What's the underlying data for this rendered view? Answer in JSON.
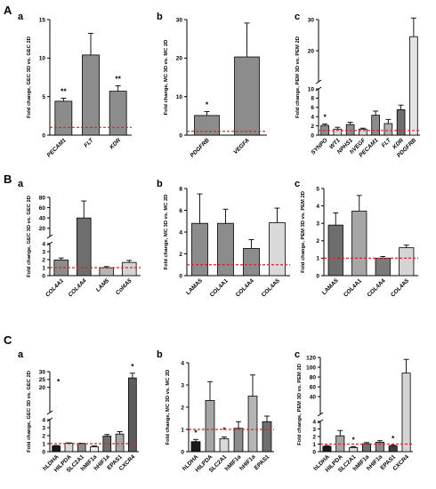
{
  "figure": {
    "row_labels": [
      "A",
      "B",
      "C"
    ]
  },
  "chart_data": [
    {
      "id": "A-a",
      "row": "A",
      "panel": "a",
      "type": "bar",
      "ylabel": "Fold change, GEC 3D vs. GEC 2D",
      "categories": [
        "PECAM1",
        "FLT",
        "KDR"
      ],
      "italic_categories": true,
      "values": [
        4.4,
        10.4,
        5.7
      ],
      "errors": [
        0.4,
        2.8,
        0.7
      ],
      "annotations": [
        "**",
        "",
        "**"
      ],
      "ylim": [
        0,
        15
      ],
      "yticks": [
        0,
        5,
        10,
        15
      ],
      "reference_line": 1,
      "bar_color": "#8c8c8c"
    },
    {
      "id": "A-b",
      "row": "A",
      "panel": "b",
      "type": "bar",
      "ylabel": "Fold change, MC 3D vs. MC 2D",
      "categories": [
        "PDGFRB",
        "VEGFA"
      ],
      "italic_categories": true,
      "values": [
        5.1,
        20.3
      ],
      "errors": [
        1.0,
        8.8
      ],
      "annotations": [
        "*",
        ""
      ],
      "ylim": [
        0,
        30
      ],
      "yticks": [
        0,
        10,
        20,
        30
      ],
      "reference_line": 1,
      "bar_color": "#8c8c8c"
    },
    {
      "id": "A-c",
      "row": "A",
      "panel": "c",
      "type": "bar",
      "ylabel": "Fold change, PEM 3D vs. PEM 2D",
      "categories": [
        "SYNPO",
        "WT1",
        "NPHS1",
        "hVEGF",
        "PECAM1",
        "FLT",
        "KDR",
        "PDGFRB"
      ],
      "italic_categories": true,
      "values": [
        2.1,
        1.3,
        2.3,
        1.3,
        4.3,
        2.5,
        5.5,
        24.5
      ],
      "errors": [
        0.3,
        0.4,
        0.5,
        0.2,
        0.9,
        0.9,
        1.0,
        6.0
      ],
      "colors": [
        "#8c8c8c",
        "#d9d9d9",
        "#8c8c8c",
        "#d9d9d9",
        "#8c8c8c",
        "#b0b0b0",
        "#6e6e6e",
        "#e3e3e3"
      ],
      "annotations": [
        "*",
        "",
        "",
        "",
        "",
        "",
        "",
        ""
      ],
      "broken_axis": true,
      "lower_ylim": [
        0,
        10
      ],
      "lower_yticks": [
        0,
        2,
        4,
        6,
        8,
        10
      ],
      "upper_ylim": [
        10,
        30
      ],
      "upper_yticks": [
        20,
        30
      ],
      "reference_line": 1
    },
    {
      "id": "B-a",
      "row": "B",
      "panel": "a",
      "type": "bar",
      "ylabel": "Fold change, GEC 3D vs. GEC 2D",
      "categories": [
        "COL4A1",
        "COL4A4",
        "LAM5",
        "Col4A5"
      ],
      "italic_categories": true,
      "values": [
        1.95,
        40,
        0.98,
        1.65
      ],
      "errors": [
        0.25,
        33,
        0.15,
        0.25
      ],
      "colors": [
        "#8c8c8c",
        "#6e6e6e",
        "#b5b5b5",
        "#d4d4d4"
      ],
      "broken_axis": true,
      "lower_ylim": [
        0,
        4
      ],
      "lower_yticks": [
        0,
        1,
        2,
        3,
        4
      ],
      "upper_ylim": [
        4,
        80
      ],
      "upper_yticks": [
        20,
        40,
        60,
        80
      ],
      "reference_line": 1
    },
    {
      "id": "B-b",
      "row": "B",
      "panel": "b",
      "type": "bar",
      "ylabel": "Fold change, MC 3D vs. MC 2D",
      "categories": [
        "LAMA5",
        "COL4A1",
        "COL4A4",
        "COL4A5"
      ],
      "values": [
        4.8,
        4.8,
        2.5,
        4.85
      ],
      "errors": [
        2.7,
        1.3,
        0.8,
        1.35
      ],
      "colors": [
        "#8c8c8c",
        "#8c8c8c",
        "#8c8c8c",
        "#d9d9d9"
      ],
      "ylim": [
        0,
        8
      ],
      "yticks": [
        0,
        2,
        4,
        6,
        8
      ],
      "reference_line": 1
    },
    {
      "id": "B-c",
      "row": "B",
      "panel": "c",
      "type": "bar",
      "ylabel": "Fold change, PEM 3D vs. PEM 2D",
      "categories": [
        "LAMA5",
        "COL4A1",
        "COL4A4",
        "COL4A5"
      ],
      "values": [
        2.9,
        3.7,
        1.0,
        1.6
      ],
      "errors": [
        0.7,
        0.9,
        0.1,
        0.15
      ],
      "colors": [
        "#6e6e6e",
        "#a6a6a6",
        "#7a7a7a",
        "#d4d4d4"
      ],
      "ylim": [
        0,
        5
      ],
      "yticks": [
        0,
        1,
        2,
        3,
        4,
        5
      ],
      "reference_line": 1
    },
    {
      "id": "C-a",
      "row": "C",
      "panel": "a",
      "type": "bar",
      "ylabel": "Fold change, GEC 3D vs. GEC 2D",
      "categories": [
        "hLDHA",
        "HILPDA",
        "SLC2A1",
        "hMIF1a",
        "hHIF1a",
        "EPAS1",
        "CXCR4"
      ],
      "values": [
        0.72,
        1.05,
        1.0,
        0.6,
        1.95,
        2.2,
        26
      ],
      "errors": [
        0.05,
        0.05,
        0.05,
        0.1,
        0.2,
        0.3,
        3.0
      ],
      "colors": [
        "#1a1a1a",
        "#d9d9d9",
        "#8c8c8c",
        "#ececec",
        "#6e6e6e",
        "#a6a6a6",
        "#5c5c5c"
      ],
      "annotations": [
        "",
        "",
        "",
        "",
        "",
        "",
        "*"
      ],
      "side_annotation": "*",
      "broken_axis": true,
      "lower_ylim": [
        0,
        4
      ],
      "lower_yticks": [
        0,
        1,
        2,
        3,
        4
      ],
      "upper_ylim": [
        4,
        30
      ],
      "upper_yticks": [
        20,
        25,
        30
      ],
      "reference_line": 1
    },
    {
      "id": "C-b",
      "row": "C",
      "panel": "b",
      "type": "bar",
      "ylabel": "Fold change, MC 3D vs. MC 2D",
      "categories": [
        "hLDHA",
        "HILPDA",
        "SLC2A1",
        "hMIF1a",
        "hHIF1a",
        "EPAS1"
      ],
      "values": [
        0.45,
        2.3,
        0.58,
        1.05,
        2.5,
        1.35
      ],
      "errors": [
        0.1,
        0.85,
        0.08,
        0.3,
        0.95,
        0.25
      ],
      "colors": [
        "#1a1a1a",
        "#a6a6a6",
        "#d9d9d9",
        "#8c8c8c",
        "#b5b5b5",
        "#6e6e6e"
      ],
      "annotations": [
        "*",
        "",
        "*",
        "",
        "",
        ""
      ],
      "ylim": [
        0,
        4
      ],
      "yticks": [
        0,
        1,
        2,
        3,
        4
      ],
      "reference_line": 1
    },
    {
      "id": "C-c",
      "row": "C",
      "panel": "c",
      "type": "bar",
      "ylabel": "Fold change, PEM 3D vs. PEM 2D",
      "categories": [
        "hLDHA",
        "HILPDA",
        "SLC2A1",
        "hMIF1a",
        "hHIF1a",
        "EPAS1",
        "CXCR4"
      ],
      "values": [
        0.7,
        2.1,
        0.55,
        1.05,
        1.25,
        0.75,
        88
      ],
      "errors": [
        0.1,
        0.7,
        0.1,
        0.15,
        0.2,
        0.1,
        28
      ],
      "colors": [
        "#1a1a1a",
        "#a6a6a6",
        "#d9d9d9",
        "#6e6e6e",
        "#8c8c8c",
        "#3d3d3d",
        "#d4d4d4"
      ],
      "annotations": [
        "",
        "",
        "*",
        "",
        "",
        "*",
        ""
      ],
      "broken_axis": true,
      "lower_ylim": [
        0,
        4
      ],
      "lower_yticks": [
        0,
        1,
        2,
        3,
        4
      ],
      "upper_ylim": [
        4,
        120
      ],
      "upper_yticks": [
        40,
        60,
        80,
        100,
        120
      ],
      "reference_line": 1
    }
  ]
}
